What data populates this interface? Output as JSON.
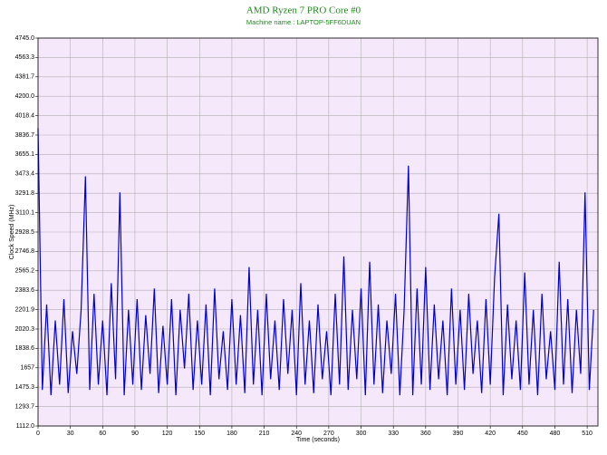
{
  "chart_data": {
    "type": "line",
    "title": "AMD Ryzen 7 PRO Core #0",
    "subtitle": "Machine name : LAPTOP-5FF6DUAN",
    "x_label": "Time (seconds)",
    "y_label": "Clock Speed (MHz)",
    "color": "#0000cc",
    "background": "#f6e8fb",
    "grid": true,
    "xlim": [
      0,
      520
    ],
    "xticks": [
      0,
      30,
      60,
      90,
      120,
      150,
      180,
      210,
      240,
      270,
      300,
      330,
      360,
      390,
      420,
      450,
      480,
      510
    ],
    "ylim": [
      1112,
      4745
    ],
    "yticks": [
      {
        "value": 1112,
        "label": "1112.0"
      },
      1293.7,
      1475.3,
      1657.0,
      1838.6,
      2020.3,
      2201.9,
      2383.6,
      2565.2,
      2746.8,
      2928.5,
      3110.1,
      3291.8,
      3473.4,
      3655.1,
      3836.7,
      4018.4,
      {
        "value": 4200,
        "label": "4200.0"
      },
      4381.7,
      4563.3,
      {
        "value": 4745,
        "label": "4745.0"
      }
    ],
    "x": [
      0,
      4,
      8,
      12,
      16,
      20,
      24,
      28,
      32,
      36,
      40,
      44,
      48,
      52,
      56,
      60,
      64,
      68,
      72,
      76,
      80,
      84,
      88,
      92,
      96,
      100,
      104,
      108,
      112,
      116,
      120,
      124,
      128,
      132,
      136,
      140,
      144,
      148,
      152,
      156,
      160,
      164,
      168,
      172,
      176,
      180,
      184,
      188,
      192,
      196,
      200,
      204,
      208,
      212,
      216,
      220,
      224,
      228,
      232,
      236,
      240,
      244,
      248,
      252,
      256,
      260,
      264,
      268,
      272,
      276,
      280,
      284,
      288,
      292,
      296,
      300,
      304,
      308,
      312,
      316,
      320,
      324,
      328,
      332,
      336,
      340,
      344,
      348,
      352,
      356,
      360,
      364,
      368,
      372,
      376,
      380,
      384,
      388,
      392,
      396,
      400,
      404,
      408,
      412,
      416,
      420,
      424,
      428,
      432,
      436,
      440,
      444,
      448,
      452,
      456,
      460,
      464,
      468,
      472,
      476,
      480,
      484,
      488,
      492,
      496,
      500,
      504,
      508,
      512,
      516
    ],
    "values": [
      3900,
      1450,
      2250,
      1400,
      2100,
      1500,
      2300,
      1420,
      2000,
      1600,
      2200,
      3450,
      1450,
      2350,
      1500,
      2100,
      1400,
      2450,
      1550,
      3300,
      1400,
      2200,
      1500,
      2300,
      1450,
      2150,
      1600,
      2400,
      1420,
      2050,
      1500,
      2300,
      1400,
      2200,
      1650,
      2350,
      1450,
      2100,
      1500,
      2250,
      1400,
      2400,
      1550,
      2000,
      1450,
      2300,
      1500,
      2150,
      1420,
      2600,
      1500,
      2200,
      1400,
      2350,
      1550,
      2100,
      1450,
      2300,
      1600,
      2200,
      1400,
      2450,
      1500,
      2100,
      1420,
      2250,
      1550,
      2000,
      1400,
      2350,
      1500,
      2700,
      1450,
      2200,
      1550,
      2400,
      1400,
      2650,
      1500,
      2250,
      1420,
      2100,
      1600,
      2350,
      1400,
      2200,
      3550,
      1400,
      2400,
      1500,
      2600,
      1450,
      2250,
      1550,
      2100,
      1400,
      2400,
      1500,
      2200,
      1450,
      2350,
      1600,
      2100,
      1420,
      2300,
      1500,
      2500,
      3100,
      1400,
      2250,
      1550,
      2100,
      1450,
      2550,
      1500,
      2200,
      1400,
      2350,
      1550,
      2000,
      1450,
      2650,
      1500,
      2300,
      1420,
      2200,
      1600,
      3300,
      1450,
      2200
    ]
  }
}
